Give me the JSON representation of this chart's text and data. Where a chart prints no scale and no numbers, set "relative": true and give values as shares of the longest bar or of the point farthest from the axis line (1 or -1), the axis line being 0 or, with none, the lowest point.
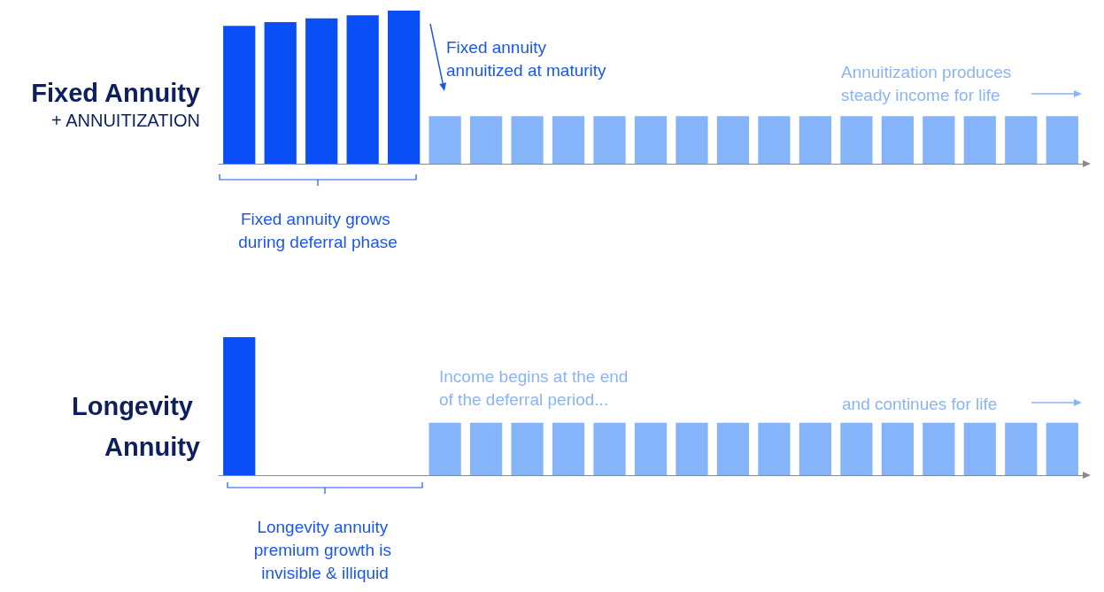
{
  "chart_data": [
    {
      "type": "bar",
      "title": "Fixed Annuity",
      "subtitle": "+ ANNUITIZATION",
      "relative": true,
      "categories": [
        null,
        null,
        null,
        null,
        null,
        null,
        null,
        null,
        null,
        null,
        null,
        null,
        null,
        null,
        null,
        null,
        null,
        null,
        null,
        null,
        null
      ],
      "values": [
        0.9,
        0.925,
        0.95,
        0.97,
        1,
        0.31,
        0.31,
        0.31,
        0.31,
        0.31,
        0.31,
        0.31,
        0.31,
        0.31,
        0.31,
        0.31,
        0.31,
        0.31,
        0.31,
        0.31,
        0.31
      ],
      "colors": [
        "#0a4ff5",
        "#0a4ff5",
        "#0a4ff5",
        "#0a4ff5",
        "#0a4ff5",
        "#85b4fb",
        "#85b4fb",
        "#85b4fb",
        "#85b4fb",
        "#85b4fb",
        "#85b4fb",
        "#85b4fb",
        "#85b4fb",
        "#85b4fb",
        "#85b4fb",
        "#85b4fb",
        "#85b4fb",
        "#85b4fb",
        "#85b4fb",
        "#85b4fb",
        "#85b4fb"
      ],
      "annotations": [
        "Fixed annuity annuitized at maturity",
        "Annuitization produces steady income for life",
        "Fixed annuity grows during deferral phase"
      ]
    },
    {
      "type": "bar",
      "title": "Longevity Annuity",
      "relative": true,
      "categories": [
        null,
        null,
        null,
        null,
        null,
        null,
        null,
        null,
        null,
        null,
        null,
        null,
        null,
        null,
        null,
        null,
        null,
        null,
        null,
        null,
        null
      ],
      "values": [
        1,
        null,
        null,
        null,
        null,
        0.38,
        0.38,
        0.38,
        0.38,
        0.38,
        0.38,
        0.38,
        0.38,
        0.38,
        0.38,
        0.38,
        0.38,
        0.38,
        0.38,
        0.38,
        0.38
      ],
      "colors": [
        "#0a4ff5",
        null,
        null,
        null,
        null,
        "#85b4fb",
        "#85b4fb",
        "#85b4fb",
        "#85b4fb",
        "#85b4fb",
        "#85b4fb",
        "#85b4fb",
        "#85b4fb",
        "#85b4fb",
        "#85b4fb",
        "#85b4fb",
        "#85b4fb",
        "#85b4fb",
        "#85b4fb",
        "#85b4fb",
        "#85b4fb"
      ],
      "annotations": [
        "Income begins at the end of the deferral period...",
        "and continues for life",
        "Longevity annuity premium growth is invisible & illiquid"
      ]
    }
  ]
}
